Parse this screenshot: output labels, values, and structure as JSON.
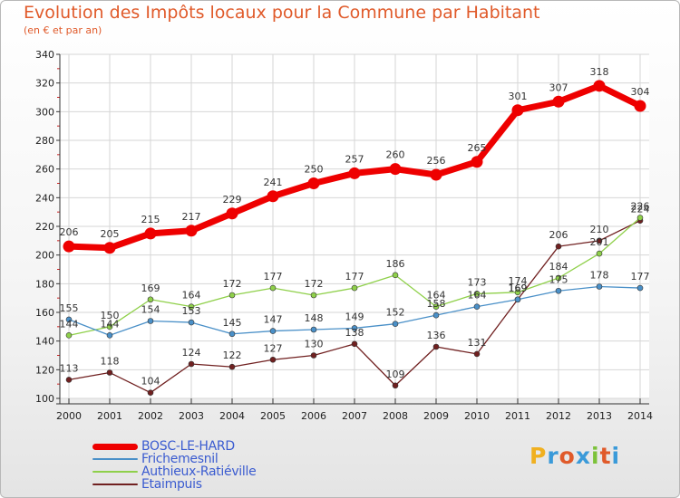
{
  "header": {
    "title": "Evolution des Impôts locaux pour la Commune par Habitant",
    "subtitle": "(en € et par an)"
  },
  "logo": {
    "text": "Proxiti",
    "letter_colors": [
      "#f0b020",
      "#3a9ad9",
      "#e05a2a",
      "#3a9ad9",
      "#7cc23a",
      "#e05a2a",
      "#3a9ad9"
    ]
  },
  "chart_data": {
    "type": "line",
    "title": "Evolution des Impôts locaux pour la Commune par Habitant",
    "subtitle": "(en € et par an)",
    "x": [
      2000,
      2001,
      2002,
      2003,
      2004,
      2005,
      2006,
      2007,
      2008,
      2009,
      2010,
      2011,
      2012,
      2013,
      2014
    ],
    "ylim": [
      100,
      340
    ],
    "yticks": [
      100,
      120,
      140,
      160,
      180,
      200,
      220,
      240,
      260,
      280,
      300,
      320,
      340
    ],
    "grid": true,
    "legend_position": "bottom-left",
    "series": [
      {
        "name": "BOSC-LE-HARD",
        "color": "#ee0000",
        "width": 7,
        "marker": 6.5,
        "values": [
          206,
          205,
          215,
          217,
          229,
          241,
          250,
          257,
          260,
          256,
          265,
          301,
          307,
          318,
          304
        ]
      },
      {
        "name": "Frichemesnil",
        "color": "#4a90c8",
        "width": 1.3,
        "marker": 3,
        "values": [
          155,
          144,
          154,
          153,
          145,
          147,
          148,
          149,
          152,
          158,
          164,
          169,
          175,
          178,
          177
        ]
      },
      {
        "name": "Authieux-Ratiéville",
        "color": "#8fd04a",
        "width": 1.3,
        "marker": 3,
        "values": [
          144,
          150,
          169,
          164,
          172,
          177,
          172,
          177,
          186,
          164,
          173,
          174,
          184,
          201,
          226
        ]
      },
      {
        "name": "Etaimpuis",
        "color": "#702020",
        "width": 1.3,
        "marker": 3,
        "values": [
          113,
          118,
          104,
          124,
          122,
          127,
          130,
          138,
          109,
          136,
          131,
          169,
          206,
          210,
          224
        ]
      }
    ]
  }
}
